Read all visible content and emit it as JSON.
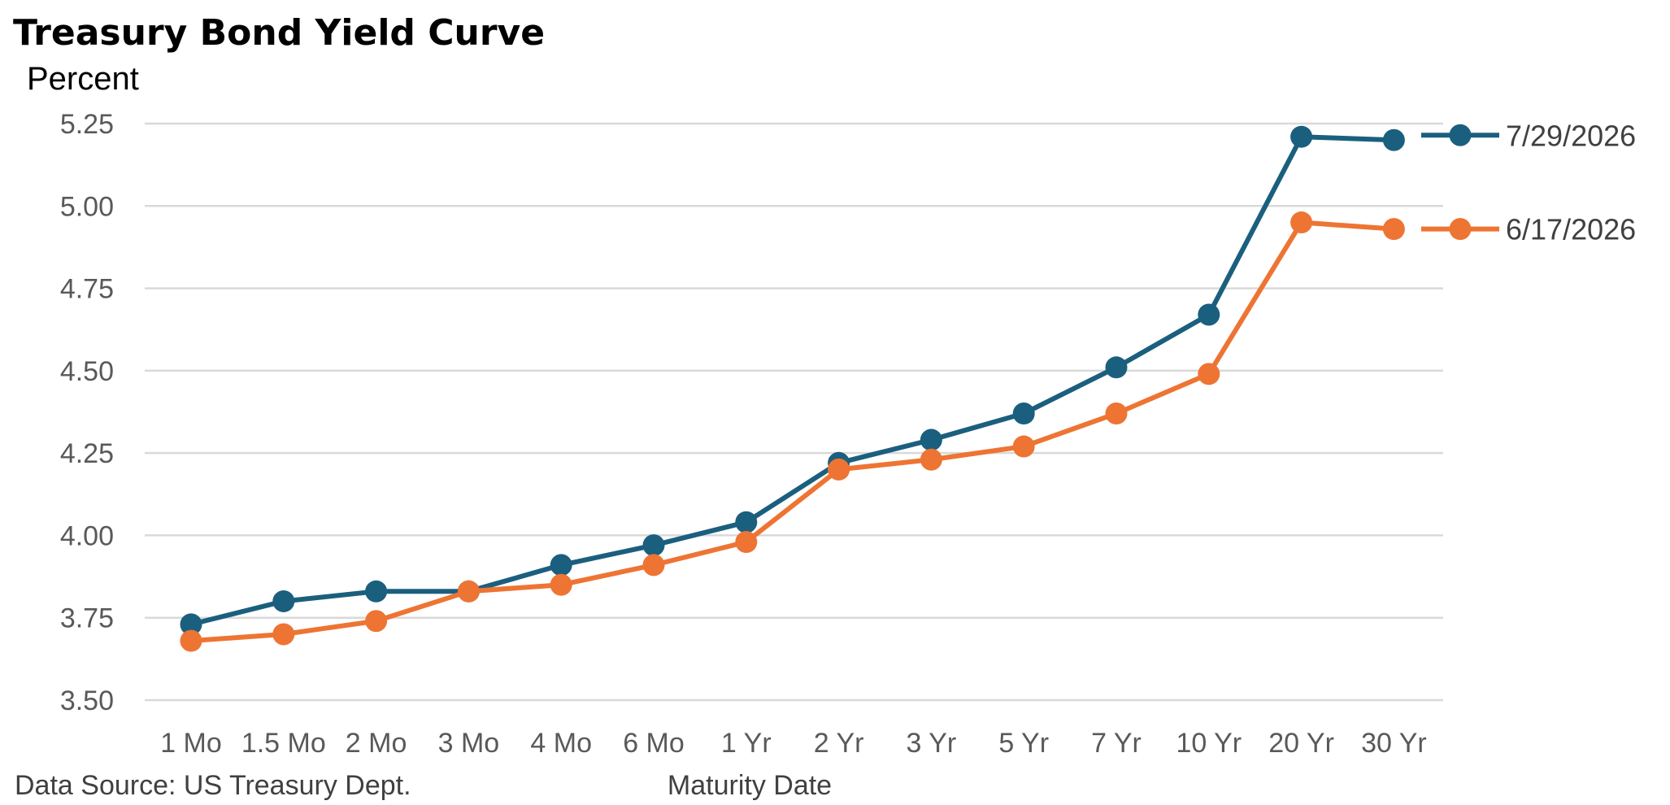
{
  "chart_data": {
    "type": "line",
    "title": "Treasury Bond Yield Curve",
    "subtitle": "Percent",
    "xlabel": "Maturity Date",
    "ylabel": "",
    "source": "Data Source: US Treasury Dept.",
    "categories": [
      "1 Mo",
      "1.5 Mo",
      "2 Mo",
      "3 Mo",
      "4 Mo",
      "6 Mo",
      "1 Yr",
      "2 Yr",
      "3 Yr",
      "5 Yr",
      "7 Yr",
      "10 Yr",
      "20 Yr",
      "30 Yr"
    ],
    "ylim": [
      3.5,
      5.25
    ],
    "yticks": [
      "3.50",
      "3.75",
      "4.00",
      "4.25",
      "4.50",
      "4.75",
      "5.00",
      "5.25"
    ],
    "grid": "horizontal",
    "legend": "right, at line ends",
    "series": [
      {
        "name": "7/29/2026",
        "color": "#1b5f7e",
        "values": [
          3.73,
          3.8,
          3.83,
          3.83,
          3.91,
          3.97,
          4.04,
          4.22,
          4.29,
          4.37,
          4.51,
          4.67,
          5.21,
          5.2
        ]
      },
      {
        "name": "6/17/2026",
        "color": "#ee7433",
        "values": [
          3.68,
          3.7,
          3.74,
          3.83,
          3.85,
          3.91,
          3.98,
          4.2,
          4.23,
          4.27,
          4.37,
          4.49,
          4.95,
          4.93
        ]
      }
    ]
  }
}
